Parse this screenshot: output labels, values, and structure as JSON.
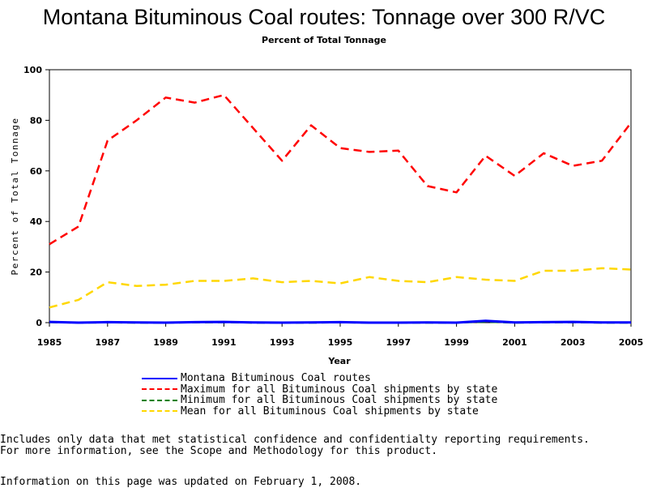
{
  "title": "Montana Bituminous Coal routes: Tonnage over 300 R/VC",
  "subtitle": "Percent of Total Tonnage",
  "notes": [
    "Includes only data that met statistical confidence and confidentialty reporting requirements.",
    "For more information, see the Scope and Methodology for this product."
  ],
  "update_text": "Information on this page was updated on February 1, 2008.",
  "chart_data": {
    "type": "line",
    "title": "Montana Bituminous Coal routes: Tonnage over 300 R/VC",
    "subtitle": "Percent of Total Tonnage",
    "xlabel": "Year",
    "ylabel": "Percent of Total Tonnage",
    "xlim": [
      1985,
      2005
    ],
    "ylim": [
      0,
      100
    ],
    "xticks": [
      1985,
      1987,
      1989,
      1991,
      1993,
      1995,
      1997,
      1999,
      2001,
      2003,
      2005
    ],
    "yticks": [
      0,
      20,
      40,
      60,
      80,
      100
    ],
    "x": [
      1985,
      1986,
      1987,
      1988,
      1989,
      1990,
      1991,
      1992,
      1993,
      1994,
      1995,
      1996,
      1997,
      1998,
      1999,
      2000,
      2001,
      2002,
      2003,
      2004,
      2005
    ],
    "grid": false,
    "legend_position": "bottom",
    "series": [
      {
        "name": "Montana Bituminous Coal routes",
        "color": "#0000ff",
        "dash": "solid",
        "values": [
          0.3,
          0.0,
          0.2,
          0.1,
          0.0,
          0.2,
          0.3,
          0.1,
          0.0,
          0.1,
          0.2,
          0.0,
          0.0,
          0.1,
          0.0,
          0.7,
          0.1,
          0.2,
          0.3,
          0.1,
          0.1
        ]
      },
      {
        "name": "Maximum for all Bituminous Coal shipments by state",
        "color": "#ff0000",
        "dash": "dashed",
        "values": [
          31,
          38,
          72,
          80,
          89,
          87,
          90,
          77,
          64,
          78,
          69,
          67.5,
          68,
          54,
          51.5,
          66,
          58,
          67,
          62,
          64,
          79
        ]
      },
      {
        "name": "Minimum for all Bituminous Coal shipments by state",
        "color": "#008000",
        "dash": "dashed",
        "values": [
          0.2,
          0.0,
          0.1,
          0.0,
          0.0,
          0.1,
          0.2,
          0.0,
          0.0,
          0.0,
          0.1,
          0.0,
          0.0,
          0.0,
          0.0,
          0.4,
          0.0,
          0.1,
          0.2,
          0.0,
          0.0
        ]
      },
      {
        "name": "Mean for all Bituminous Coal shipments by state",
        "color": "#ffd700",
        "dash": "dashed",
        "values": [
          6,
          9,
          16,
          14.5,
          15,
          16.5,
          16.5,
          17.5,
          16,
          16.5,
          15.5,
          18,
          16.5,
          16,
          18,
          17,
          16.5,
          20.5,
          20.5,
          21.5,
          21
        ]
      }
    ]
  }
}
